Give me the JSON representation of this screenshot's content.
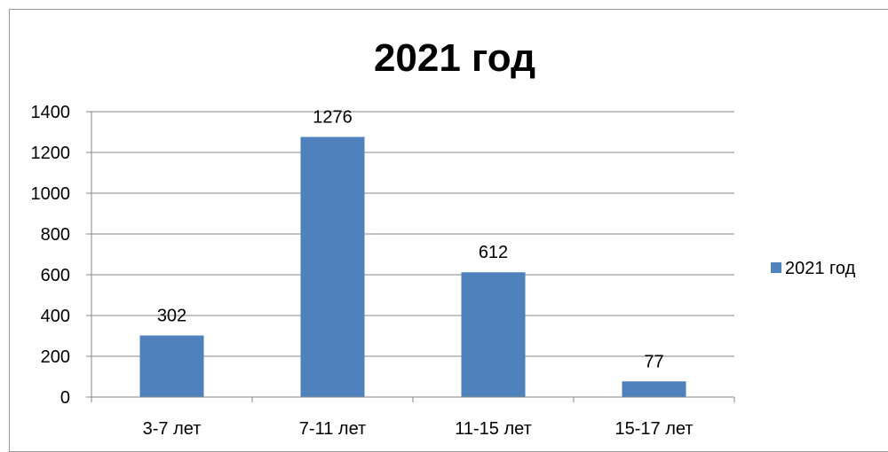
{
  "chart_data": {
    "type": "bar",
    "title": "2021 год",
    "categories": [
      "3-7 лет",
      "7-11 лет",
      "11-15 лет",
      "15-17 лет"
    ],
    "series": [
      {
        "name": "2021 год",
        "values": [
          302,
          1276,
          612,
          77
        ]
      }
    ],
    "ylim": [
      0,
      1400
    ],
    "yticks": [
      0,
      200,
      400,
      600,
      800,
      1000,
      1200,
      1400
    ],
    "grid": true,
    "legend_position": "right",
    "data_labels": true,
    "bar_color": "#4f81bd",
    "grid_color": "#868686"
  }
}
